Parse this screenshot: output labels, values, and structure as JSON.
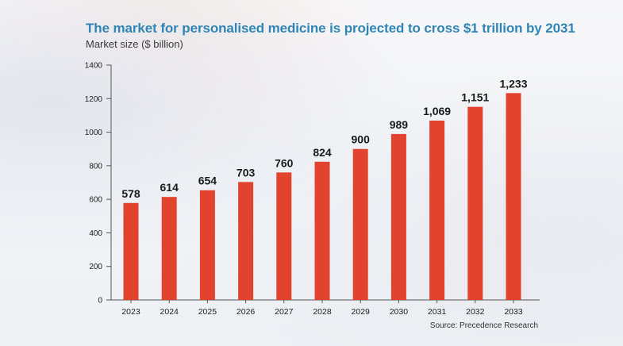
{
  "title": "The market for personalised medicine is projected to cross $1 trillion by 2031",
  "subtitle": "Market size ($ billion)",
  "source": "Source: Precedence Research",
  "colors": {
    "bar": "#e2432f",
    "axis": "#555555",
    "title": "#2f86b6"
  },
  "chart_data": {
    "type": "bar",
    "title": "The market for personalised medicine is projected to cross $1 trillion by 2031",
    "ylabel": "Market size ($ billion)",
    "xlabel": "",
    "categories": [
      "2023",
      "2024",
      "2025",
      "2026",
      "2027",
      "2028",
      "2029",
      "2030",
      "2031",
      "2032",
      "2033"
    ],
    "values": [
      578,
      614,
      654,
      703,
      760,
      824,
      900,
      989,
      1069,
      1151,
      1233
    ],
    "value_labels": [
      "578",
      "614",
      "654",
      "703",
      "760",
      "824",
      "900",
      "989",
      "1,069",
      "1,151",
      "1,233"
    ],
    "ylim": [
      0,
      1400
    ],
    "yticks": [
      "0",
      "200",
      "400",
      "600",
      "800",
      "1000",
      "1200",
      "1400"
    ],
    "grid": false,
    "legend": "none"
  }
}
